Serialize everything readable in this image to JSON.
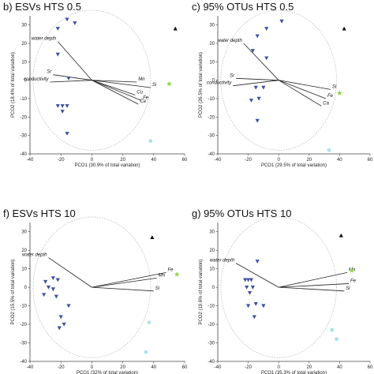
{
  "colors": {
    "triangle_down": "#3f4f9f",
    "triangle_up": "#111111",
    "star": "#8fd34a",
    "cyan": "#a7e3ea",
    "vector": "#222222",
    "circle": "#bdbdbd"
  },
  "chart_data": [
    {
      "type": "scatter",
      "title": "b) ESVs HTS 0.5",
      "xlabel": "PCO1 (30.9% of total variation)",
      "ylabel": "PCO2 (18.4% of total variation)",
      "xlim": [
        -40,
        60
      ],
      "ylim": [
        -40,
        35
      ],
      "xticks": [
        -40,
        -20,
        0,
        20,
        40,
        60
      ],
      "yticks": [
        -40,
        -30,
        -20,
        -10,
        0,
        10,
        20,
        30
      ],
      "circle_radius": 38,
      "points": [
        {
          "shape": "tri-down",
          "color": "triangle_down",
          "x": -16,
          "y": 33
        },
        {
          "shape": "tri-down",
          "color": "triangle_down",
          "x": -11,
          "y": 31
        },
        {
          "shape": "tri-down",
          "color": "triangle_down",
          "x": -22,
          "y": 28
        },
        {
          "shape": "tri-down",
          "color": "triangle_down",
          "x": -22,
          "y": 14
        },
        {
          "shape": "tri-down",
          "color": "triangle_down",
          "x": -15,
          "y": 1
        },
        {
          "shape": "tri-down",
          "color": "triangle_down",
          "x": -19,
          "y": -14
        },
        {
          "shape": "tri-down",
          "color": "triangle_down",
          "x": -22,
          "y": -14
        },
        {
          "shape": "tri-down",
          "color": "triangle_down",
          "x": -19,
          "y": -17
        },
        {
          "shape": "tri-down",
          "color": "triangle_down",
          "x": -16,
          "y": -14
        },
        {
          "shape": "tri-down",
          "color": "triangle_down",
          "x": -16,
          "y": -29
        },
        {
          "shape": "tri-up",
          "color": "triangle_up",
          "x": 54,
          "y": 28
        },
        {
          "shape": "star",
          "color": "star",
          "x": 50,
          "y": -2
        },
        {
          "shape": "dot",
          "color": "cyan",
          "x": 38,
          "y": -33
        }
      ],
      "vectors": [
        {
          "label": "water depth",
          "x": -22,
          "y": 21
        },
        {
          "label": "Sr",
          "x": -25,
          "y": 3
        },
        {
          "label": "conductivity",
          "x": -27,
          "y": -1
        },
        {
          "label": "Mn",
          "x": 29,
          "y": -1
        },
        {
          "label": "Si",
          "x": 38,
          "y": -4
        },
        {
          "label": "Cu",
          "x": 28,
          "y": -8
        },
        {
          "label": "Fe",
          "x": 32,
          "y": -11
        },
        {
          "label": "Ca",
          "x": 30,
          "y": -13
        }
      ]
    },
    {
      "type": "scatter",
      "title": "c) 95% OTUs HTS 0.5",
      "xlabel": "PCO1 (29.5% of total variation)",
      "ylabel": "PCO2 (26.5% of total variation)",
      "xlim": [
        -40,
        60
      ],
      "ylim": [
        -40,
        35
      ],
      "xticks": [
        -40,
        -20,
        0,
        20,
        40,
        60
      ],
      "yticks": [
        -40,
        -30,
        -20,
        -10,
        0,
        10,
        20,
        30
      ],
      "circle_radius": 38,
      "points": [
        {
          "shape": "tri-down",
          "color": "triangle_down",
          "x": 2,
          "y": 32
        },
        {
          "shape": "tri-down",
          "color": "triangle_down",
          "x": -8,
          "y": 28
        },
        {
          "shape": "tri-down",
          "color": "triangle_down",
          "x": -14,
          "y": 24
        },
        {
          "shape": "tri-down",
          "color": "triangle_down",
          "x": -17,
          "y": 16
        },
        {
          "shape": "tri-down",
          "color": "triangle_down",
          "x": -8,
          "y": 12
        },
        {
          "shape": "tri-down",
          "color": "triangle_down",
          "x": -15,
          "y": -4
        },
        {
          "shape": "tri-down",
          "color": "triangle_down",
          "x": -10,
          "y": -4
        },
        {
          "shape": "tri-down",
          "color": "triangle_down",
          "x": -13,
          "y": -10
        },
        {
          "shape": "tri-down",
          "color": "triangle_down",
          "x": -18,
          "y": -11
        },
        {
          "shape": "tri-down",
          "color": "triangle_down",
          "x": -14,
          "y": -22
        },
        {
          "shape": "tri-up",
          "color": "triangle_up",
          "x": 43,
          "y": 28
        },
        {
          "shape": "star",
          "color": "star",
          "x": 40,
          "y": -7
        },
        {
          "shape": "dot",
          "color": "cyan",
          "x": 33,
          "y": -38
        }
      ],
      "vectors": [
        {
          "label": "water depth",
          "x": -23,
          "y": 20
        },
        {
          "label": "Sr",
          "x": -28,
          "y": 1
        },
        {
          "label": "conductivity",
          "x": -30,
          "y": -3
        },
        {
          "label": "Si",
          "x": 34,
          "y": -5
        },
        {
          "label": "Fe",
          "x": 31,
          "y": -10
        },
        {
          "label": "Ca",
          "x": 28,
          "y": -14
        }
      ]
    },
    {
      "type": "scatter",
      "title": "f) ESVs HTS 10",
      "xlabel": "PCO1 (32% of total variation)",
      "ylabel": "PCO2 (15.5% of total variation)",
      "xlim": [
        -40,
        60
      ],
      "ylim": [
        -40,
        35
      ],
      "xticks": [
        -40,
        -20,
        0,
        20,
        40,
        60
      ],
      "yticks": [
        -40,
        -30,
        -20,
        -10,
        0,
        10,
        20,
        30
      ],
      "circle_radius": 38,
      "points": [
        {
          "shape": "tri-down",
          "color": "triangle_down",
          "x": -25,
          "y": 5
        },
        {
          "shape": "tri-down",
          "color": "triangle_down",
          "x": -22,
          "y": 4
        },
        {
          "shape": "tri-down",
          "color": "triangle_down",
          "x": -30,
          "y": 3
        },
        {
          "shape": "tri-down",
          "color": "triangle_down",
          "x": -28,
          "y": 0
        },
        {
          "shape": "tri-down",
          "color": "triangle_down",
          "x": -25,
          "y": -1
        },
        {
          "shape": "tri-down",
          "color": "triangle_down",
          "x": -31,
          "y": -4
        },
        {
          "shape": "tri-down",
          "color": "triangle_down",
          "x": -23,
          "y": -5
        },
        {
          "shape": "tri-down",
          "color": "triangle_down",
          "x": -15,
          "y": -10
        },
        {
          "shape": "tri-down",
          "color": "triangle_down",
          "x": -20,
          "y": -16
        },
        {
          "shape": "tri-down",
          "color": "triangle_down",
          "x": -18,
          "y": -20
        },
        {
          "shape": "tri-down",
          "color": "triangle_down",
          "x": -21,
          "y": -22
        },
        {
          "shape": "tri-up",
          "color": "triangle_up",
          "x": 39,
          "y": 27
        },
        {
          "shape": "star",
          "color": "star",
          "x": 55,
          "y": 7
        },
        {
          "shape": "dot",
          "color": "cyan",
          "x": 37,
          "y": -19
        },
        {
          "shape": "dot",
          "color": "cyan",
          "x": 35,
          "y": -35
        }
      ],
      "vectors": [
        {
          "label": "water depth",
          "x": -28,
          "y": 16
        },
        {
          "label": "Fe",
          "x": 48,
          "y": 8
        },
        {
          "label": "Mn",
          "x": 42,
          "y": 5
        },
        {
          "label": "Si",
          "x": 40,
          "y": -2
        }
      ]
    },
    {
      "type": "scatter",
      "title": "g) 95% OTUs HTS 10",
      "xlabel": "PCO1 (35.3% of total variation)",
      "ylabel": "PCO2 (19.6% of total variation)",
      "xlim": [
        -40,
        60
      ],
      "ylim": [
        -40,
        35
      ],
      "xticks": [
        -40,
        -20,
        0,
        20,
        40,
        60
      ],
      "yticks": [
        -40,
        -30,
        -20,
        -10,
        0,
        10,
        20,
        30
      ],
      "circle_radius": 38,
      "points": [
        {
          "shape": "tri-down",
          "color": "triangle_down",
          "x": -14,
          "y": 14
        },
        {
          "shape": "tri-down",
          "color": "triangle_down",
          "x": -22,
          "y": 4
        },
        {
          "shape": "tri-down",
          "color": "triangle_down",
          "x": -20,
          "y": 4
        },
        {
          "shape": "tri-down",
          "color": "triangle_down",
          "x": -18,
          "y": 4
        },
        {
          "shape": "tri-down",
          "color": "triangle_down",
          "x": -21,
          "y": 0
        },
        {
          "shape": "tri-down",
          "color": "triangle_down",
          "x": -17,
          "y": 0
        },
        {
          "shape": "tri-down",
          "color": "triangle_down",
          "x": -19,
          "y": -3
        },
        {
          "shape": "tri-down",
          "color": "triangle_down",
          "x": -15,
          "y": -9
        },
        {
          "shape": "tri-down",
          "color": "triangle_down",
          "x": -20,
          "y": -10
        },
        {
          "shape": "tri-down",
          "color": "triangle_down",
          "x": -10,
          "y": -10
        },
        {
          "shape": "tri-down",
          "color": "triangle_down",
          "x": -16,
          "y": -16
        },
        {
          "shape": "tri-up",
          "color": "triangle_up",
          "x": 41,
          "y": 28
        },
        {
          "shape": "star",
          "color": "star",
          "x": 48,
          "y": 9
        },
        {
          "shape": "dot",
          "color": "cyan",
          "x": 35,
          "y": -23
        },
        {
          "shape": "dot",
          "color": "cyan",
          "x": 38,
          "y": -28
        }
      ],
      "vectors": [
        {
          "label": "water depth",
          "x": -28,
          "y": 13
        },
        {
          "label": "Mn",
          "x": 45,
          "y": 8
        },
        {
          "label": "Fe",
          "x": 46,
          "y": 2
        },
        {
          "label": "Si",
          "x": 43,
          "y": -2
        }
      ]
    }
  ]
}
